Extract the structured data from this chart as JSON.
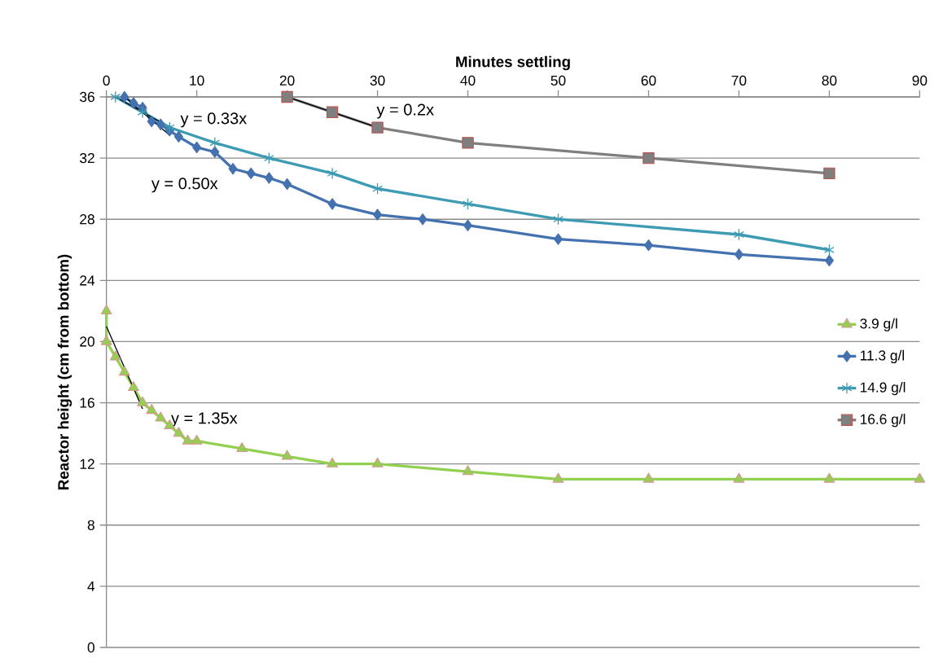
{
  "chart_data": {
    "type": "line",
    "xlabel": "Minutes settling",
    "ylabel": "Reactor height (cm from bottom)",
    "xlim": [
      0,
      90
    ],
    "xticks": [
      0,
      10,
      20,
      30,
      40,
      50,
      60,
      70,
      80,
      90
    ],
    "ylim": [
      0,
      36
    ],
    "yticks": [
      0,
      4,
      8,
      12,
      16,
      20,
      24,
      28,
      32,
      36
    ],
    "grid": "y",
    "legend": "right",
    "series": [
      {
        "name": "3.9 g/l",
        "color": "#92d050",
        "marker": "triangle",
        "x": [
          0,
          0,
          1,
          2,
          3,
          4,
          5,
          6,
          7,
          8,
          9,
          10,
          15,
          20,
          25,
          30,
          40,
          50,
          60,
          70,
          80,
          90
        ],
        "values": [
          22,
          20,
          19,
          18,
          17,
          16,
          15.5,
          15,
          14.5,
          14,
          13.5,
          13.5,
          13,
          12.5,
          12,
          12,
          11.5,
          11,
          11,
          11,
          11,
          11
        ]
      },
      {
        "name": "11.3 g/l",
        "color": "#4472b0",
        "marker": "diamond",
        "x": [
          2,
          3,
          4,
          5,
          6,
          7,
          8,
          10,
          12,
          14,
          16,
          18,
          20,
          25,
          30,
          35,
          40,
          50,
          60,
          70,
          80
        ],
        "values": [
          36,
          35.6,
          35.3,
          34.4,
          34.2,
          33.8,
          33.4,
          32.7,
          32.4,
          31.3,
          31,
          30.7,
          30.3,
          29,
          28.3,
          28,
          27.6,
          26.7,
          26.3,
          25.7,
          25.3
        ]
      },
      {
        "name": "14.9 g/l",
        "color": "#3d9bb3",
        "marker": "cross",
        "x": [
          1,
          4,
          7,
          12,
          18,
          25,
          30,
          40,
          50,
          70,
          80
        ],
        "values": [
          36,
          35,
          34,
          33,
          32,
          31,
          30,
          29,
          28,
          27,
          26
        ]
      },
      {
        "name": "16.6 g/l",
        "color": "#7f7f7f",
        "marker": "square",
        "x": [
          20,
          25,
          30,
          40,
          60,
          80
        ],
        "values": [
          36,
          35,
          34,
          33,
          32,
          31
        ]
      },
      {
        "type": "line",
        "color": "#000000",
        "marker": "none",
        "x": [
          0,
          4
        ],
        "values": [
          21,
          15.6
        ]
      },
      {
        "type": "line",
        "color": "#000000",
        "marker": "none",
        "x": [
          2,
          7
        ],
        "values": [
          36,
          33.5
        ]
      },
      {
        "type": "line",
        "color": "#000000",
        "marker": "none",
        "x": [
          1,
          6
        ],
        "values": [
          36,
          34.35
        ]
      },
      {
        "type": "line",
        "color": "#000000",
        "marker": "none",
        "x": [
          20,
          30
        ],
        "values": [
          36,
          34
        ]
      }
    ],
    "annotations": [
      "y = 1.35x",
      "y = 0.50x",
      "y = 0.33x",
      "y = 0.2x"
    ]
  }
}
